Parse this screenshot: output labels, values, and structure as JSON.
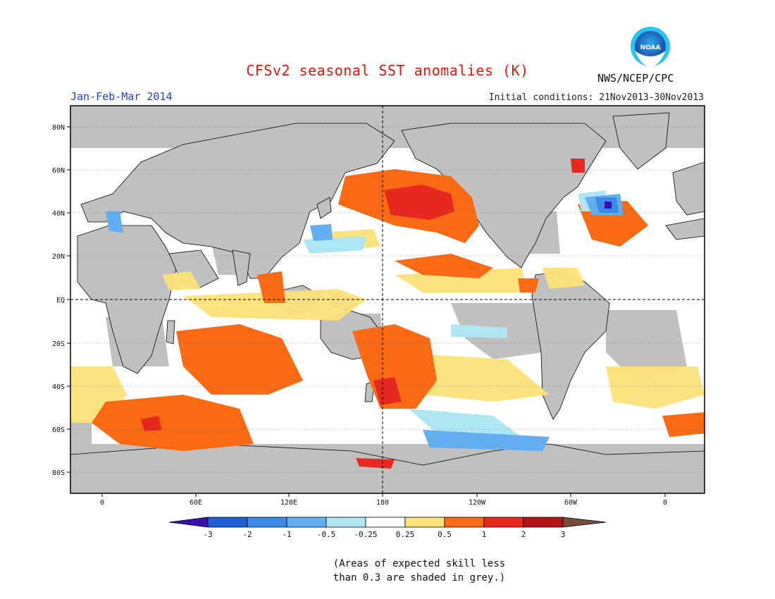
{
  "title": "CFSv2 seasonal SST anomalies (K)",
  "agency": "NWS/NCEP/CPC",
  "logo_text": "NOAA",
  "period": "Jan-Feb-Mar 2014",
  "initial_conditions": "Initial conditions: 21Nov2013-30Nov2013",
  "lat_labels": [
    "80N",
    "60N",
    "40N",
    "20N",
    "EQ",
    "20S",
    "40S",
    "60S",
    "80S"
  ],
  "lon_labels": [
    "0",
    "60E",
    "120E",
    "180",
    "120W",
    "60W",
    "0"
  ],
  "colorbar": {
    "ticks": [
      "-3",
      "-2",
      "-1",
      "-0.5",
      "-0.25",
      "0.25",
      "0.5",
      "1",
      "2",
      "3"
    ],
    "colors": [
      "#3a0fb0",
      "#1f5fd6",
      "#3a8ae8",
      "#62aef0",
      "#aee6f4",
      "#ffffff",
      "#fce27a",
      "#fa6a14",
      "#e6281e",
      "#b41414",
      "#7a4a3c"
    ]
  },
  "note_line1": "(Areas of expected skill less",
  "note_line2": "than 0.3 are shaded in grey.)",
  "colors": {
    "ocean_white": "#ffffff",
    "grey_low_skill": "#c0c0c0",
    "land_grey": "#c0c0c0",
    "warm_05": "#fce27a",
    "warm_1": "#fa6a14",
    "warm_2": "#e6281e",
    "cool_025": "#aee6f4",
    "cool_05": "#62aef0",
    "cool_1": "#3a8ae8"
  }
}
